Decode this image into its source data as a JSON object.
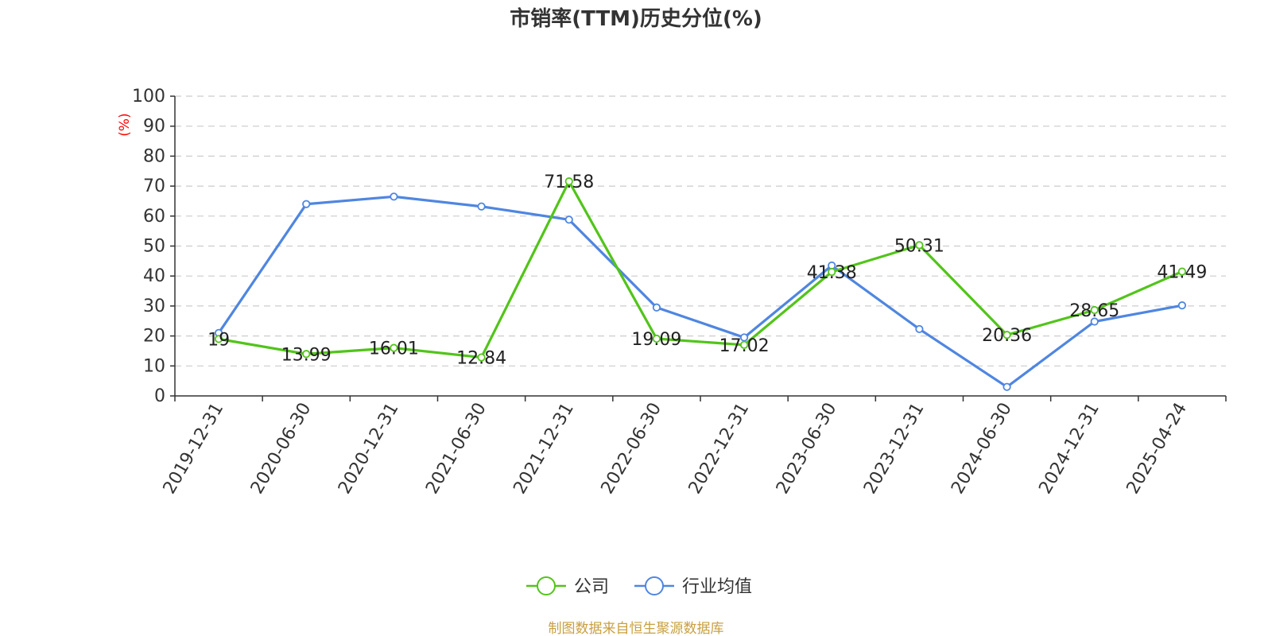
{
  "chart_data": {
    "type": "line",
    "title": "市销率(TTM)历史分位(%)",
    "ylabel": "(%)",
    "ylim": [
      0,
      100
    ],
    "yticks": [
      0,
      10,
      20,
      30,
      40,
      50,
      60,
      70,
      80,
      90,
      100
    ],
    "grid": true,
    "legend_position": "bottom",
    "categories": [
      "2019-12-31",
      "2020-06-30",
      "2020-12-31",
      "2021-06-30",
      "2021-12-31",
      "2022-06-30",
      "2022-12-31",
      "2023-06-30",
      "2023-12-31",
      "2024-06-30",
      "2024-12-31",
      "2025-04-24"
    ],
    "series": [
      {
        "name": "公司",
        "color": "#52c41a",
        "values": [
          19,
          13.99,
          16.01,
          12.84,
          71.58,
          19.09,
          17.02,
          41.38,
          50.31,
          20.36,
          28.65,
          41.49
        ],
        "labels": [
          "19",
          "13.99",
          "16.01",
          "12.84",
          "71.58",
          "19.09",
          "17.02",
          "41.38",
          "50.31",
          "20.36",
          "28.65",
          "41.49"
        ]
      },
      {
        "name": "行业均值",
        "color": "#4f86e0",
        "values": [
          21,
          64,
          66.5,
          63.2,
          58.8,
          29.5,
          19.5,
          43.5,
          22.3,
          3,
          24.8,
          30.2
        ]
      }
    ],
    "source": "制图数据来自恒生聚源数据库"
  },
  "colors": {
    "ylabel": "#ff0000",
    "source": "#c8a040",
    "axis": "#333333",
    "grid": "#cccccc"
  }
}
